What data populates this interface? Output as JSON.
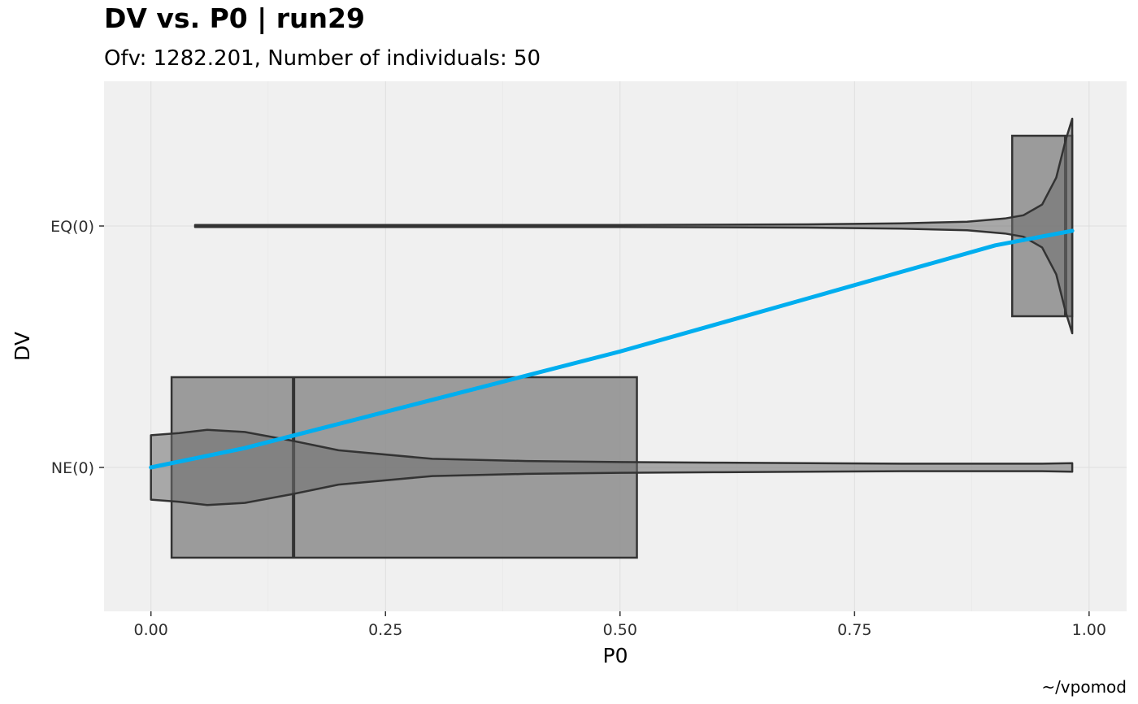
{
  "chart_data": {
    "type": "violin-box",
    "title": "DV vs. P0 | run29",
    "subtitle": "Ofv: 1282.201, Number of individuals: 50",
    "xlabel": "P0",
    "ylabel": "DV",
    "caption": "~/vpomod",
    "xlim": [
      -0.05,
      1.04
    ],
    "x_ticks": [
      0.0,
      0.25,
      0.5,
      0.75,
      1.0
    ],
    "x_tick_labels": [
      "0.00",
      "0.25",
      "0.50",
      "0.75",
      "1.00"
    ],
    "categories": [
      "NE(0)",
      "EQ(0)"
    ],
    "grid": true,
    "colors": {
      "panel_bg": "#f0f0f0",
      "grid": "#dedede",
      "box_fill": "#8c8c8c",
      "stroke": "#333333",
      "smooth": "#00aeef"
    },
    "boxes": [
      {
        "category": "NE(0)",
        "q1": 0.022,
        "median": 0.152,
        "q3": 0.518
      },
      {
        "category": "EQ(0)",
        "q1": 0.918,
        "median": 0.975,
        "q3": 0.982
      }
    ],
    "violins": [
      {
        "category": "NE(0)",
        "profile": [
          [
            0.0,
            0.3
          ],
          [
            0.03,
            0.32
          ],
          [
            0.06,
            0.35
          ],
          [
            0.1,
            0.33
          ],
          [
            0.15,
            0.25
          ],
          [
            0.2,
            0.16
          ],
          [
            0.3,
            0.08
          ],
          [
            0.4,
            0.06
          ],
          [
            0.5,
            0.05
          ],
          [
            0.6,
            0.045
          ],
          [
            0.8,
            0.035
          ],
          [
            0.95,
            0.035
          ],
          [
            0.982,
            0.04
          ]
        ]
      },
      {
        "category": "EQ(0)",
        "profile": [
          [
            0.047,
            0.01
          ],
          [
            0.3,
            0.01
          ],
          [
            0.5,
            0.01
          ],
          [
            0.7,
            0.015
          ],
          [
            0.8,
            0.025
          ],
          [
            0.87,
            0.04
          ],
          [
            0.91,
            0.07
          ],
          [
            0.93,
            0.1
          ],
          [
            0.95,
            0.2
          ],
          [
            0.965,
            0.45
          ],
          [
            0.975,
            0.8
          ],
          [
            0.982,
            1.0
          ]
        ]
      }
    ],
    "smooth": [
      [
        0.0,
        0.0
      ],
      [
        0.1,
        0.08
      ],
      [
        0.2,
        0.18
      ],
      [
        0.3,
        0.28
      ],
      [
        0.4,
        0.38
      ],
      [
        0.5,
        0.48
      ],
      [
        0.6,
        0.59
      ],
      [
        0.7,
        0.7
      ],
      [
        0.8,
        0.81
      ],
      [
        0.9,
        0.92
      ],
      [
        0.982,
        0.98
      ]
    ]
  }
}
